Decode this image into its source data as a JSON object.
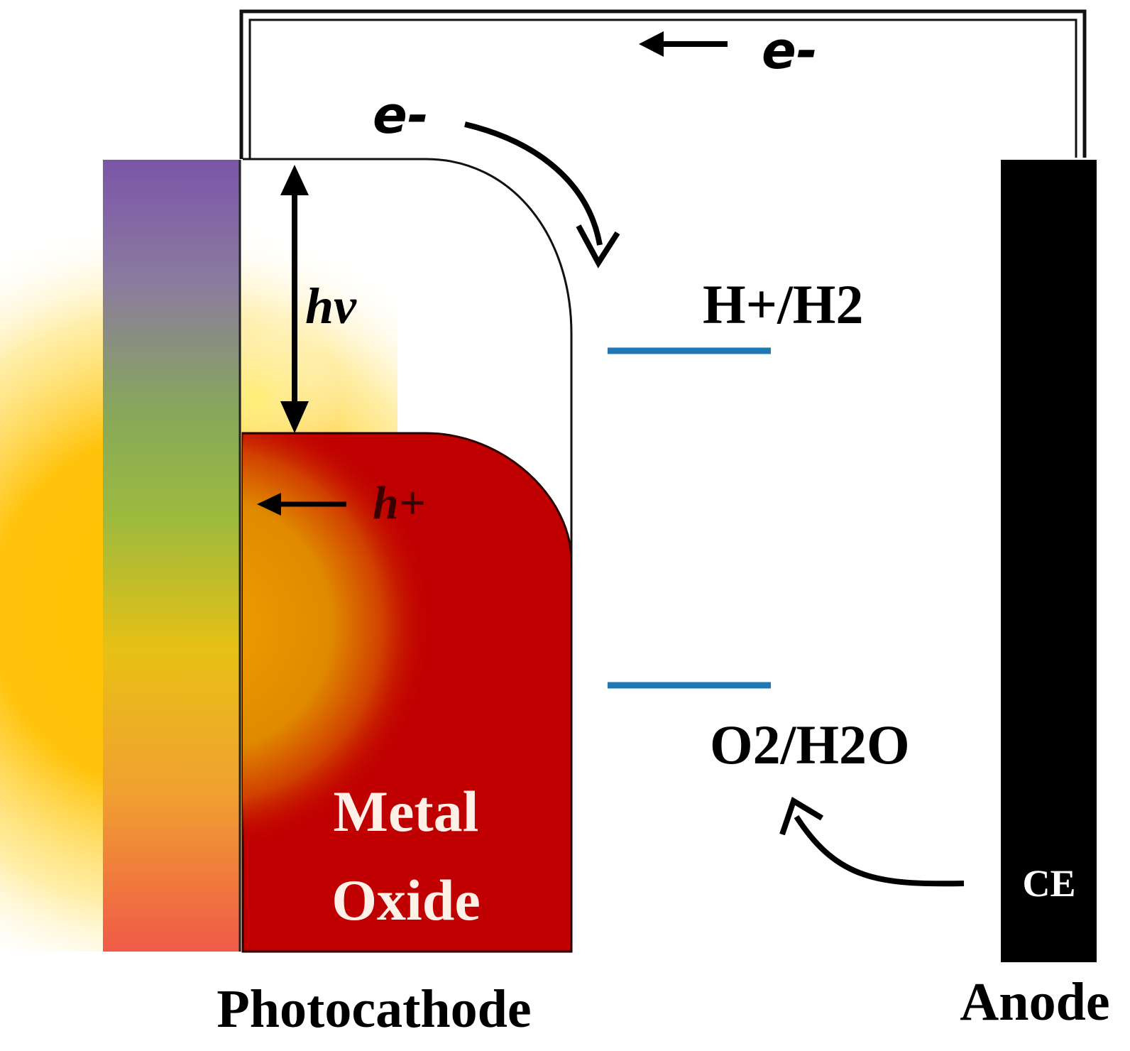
{
  "labels": {
    "electron_top": "e-",
    "electron_band": "e-",
    "photon": "hv",
    "hole": "h+",
    "h_redox": "H+/H2",
    "o_redox": "O2/H2O",
    "metal_line1": "Metal",
    "metal_line2": "Oxide",
    "counter_electrode": "CE",
    "photocathode": "Photocathode",
    "anode": "Anode"
  },
  "colors": {
    "metal_oxide": "#c00000",
    "redox_level": "#1f77b4",
    "electrode": "#000000",
    "light": "#ffc000"
  },
  "icons": {
    "light_source": "sun-glow",
    "arrows": "arrow"
  }
}
